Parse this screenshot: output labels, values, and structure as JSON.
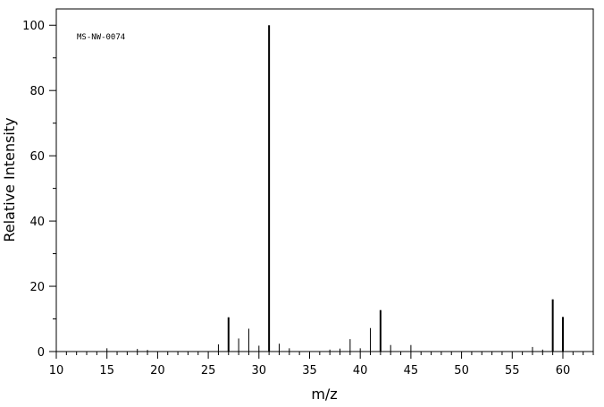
{
  "chart_data": {
    "type": "bar",
    "subtype": "mass-spectrum-sticks",
    "title": "",
    "annotation": "MS-NW-0074",
    "xlabel": "m/z",
    "ylabel": "Relative Intensity",
    "xlim": [
      10,
      63
    ],
    "ylim": [
      0,
      105
    ],
    "xticks": [
      10,
      15,
      20,
      25,
      30,
      35,
      40,
      45,
      50,
      55,
      60
    ],
    "yticks": [
      0,
      20,
      40,
      60,
      80,
      100
    ],
    "x_minor_step": 1,
    "y_minor_step": 10,
    "grid": false,
    "legend": "none",
    "bar_color": "#000000",
    "x": [
      15,
      18,
      19,
      26,
      27,
      28,
      29,
      30,
      31,
      32,
      33,
      37,
      38,
      39,
      40,
      41,
      42,
      43,
      45,
      57,
      58,
      59,
      60
    ],
    "values": [
      1.0,
      0.8,
      0.5,
      2.2,
      10.5,
      4.0,
      7.0,
      1.8,
      100,
      2.4,
      1.0,
      0.6,
      0.9,
      3.8,
      1.0,
      7.2,
      12.7,
      2.0,
      2.0,
      1.4,
      0.6,
      16.0,
      10.6
    ]
  }
}
